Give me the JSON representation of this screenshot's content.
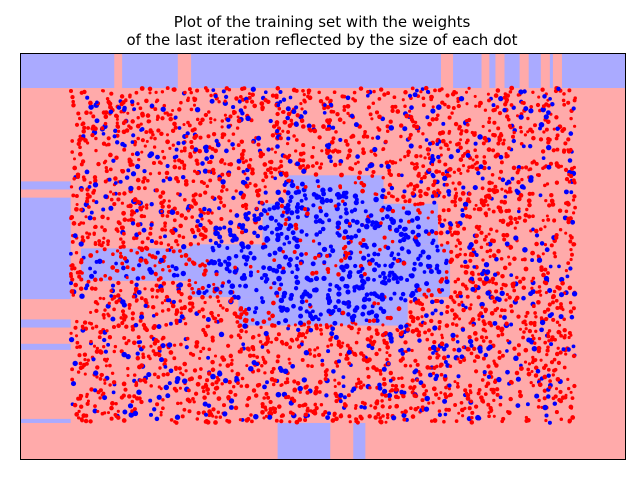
{
  "chart_data": {
    "type": "scatter",
    "title": "Plot of the training set with the weights",
    "subtitle": "of the last iteration reflected by the size of each dot",
    "xlabel": "",
    "ylabel": "",
    "xlim": [
      0,
      1
    ],
    "ylim": [
      0,
      1
    ],
    "axis_ticks": "none",
    "grid": false,
    "legend": "none",
    "background_regions": {
      "class_a_color": "#ffaaaa",
      "class_b_color": "#aaaaff",
      "class_b_rects": [
        {
          "x0": 0.0,
          "x1": 0.155,
          "y0": 0.915,
          "y1": 1.0
        },
        {
          "x0": 0.168,
          "x1": 0.26,
          "y0": 0.915,
          "y1": 1.0
        },
        {
          "x0": 0.282,
          "x1": 0.695,
          "y0": 0.915,
          "y1": 1.0
        },
        {
          "x0": 0.715,
          "x1": 0.762,
          "y0": 0.915,
          "y1": 1.0
        },
        {
          "x0": 0.775,
          "x1": 0.785,
          "y0": 0.915,
          "y1": 1.0
        },
        {
          "x0": 0.8,
          "x1": 0.825,
          "y0": 0.915,
          "y1": 1.0
        },
        {
          "x0": 0.84,
          "x1": 0.86,
          "y0": 0.915,
          "y1": 1.0
        },
        {
          "x0": 0.875,
          "x1": 0.88,
          "y0": 0.915,
          "y1": 1.0
        },
        {
          "x0": 0.895,
          "x1": 1.0,
          "y0": 0.915,
          "y1": 1.0
        },
        {
          "x0": 0.0,
          "x1": 0.083,
          "y0": 0.665,
          "y1": 0.685
        },
        {
          "x0": 0.0,
          "x1": 0.083,
          "y0": 0.395,
          "y1": 0.645
        },
        {
          "x0": 0.0,
          "x1": 0.083,
          "y0": 0.325,
          "y1": 0.345
        },
        {
          "x0": 0.0,
          "x1": 0.083,
          "y0": 0.27,
          "y1": 0.285
        },
        {
          "x0": 0.0,
          "x1": 0.083,
          "y0": 0.09,
          "y1": 0.1
        },
        {
          "x0": 0.425,
          "x1": 0.512,
          "y0": 0.0,
          "y1": 0.09
        },
        {
          "x0": 0.55,
          "x1": 0.57,
          "y0": 0.0,
          "y1": 0.09
        },
        {
          "x0": 0.1,
          "x1": 0.3,
          "y0": 0.44,
          "y1": 0.52
        },
        {
          "x0": 0.28,
          "x1": 0.71,
          "y0": 0.4,
          "y1": 0.53
        },
        {
          "x0": 0.4,
          "x1": 0.69,
          "y0": 0.53,
          "y1": 0.63
        },
        {
          "x0": 0.44,
          "x1": 0.6,
          "y0": 0.63,
          "y1": 0.7
        },
        {
          "x0": 0.36,
          "x1": 0.64,
          "y0": 0.33,
          "y1": 0.4
        }
      ]
    },
    "series": [
      {
        "color": "#ff0000",
        "approx_points": 2600
      },
      {
        "color": "#0000ff",
        "approx_points": 1400
      }
    ],
    "sampling": {
      "x_range": [
        0.083,
        0.917
      ],
      "y_range": [
        0.09,
        0.915
      ],
      "blue_ring_inner": 0.07,
      "blue_ring_outer": 0.21,
      "blue_ring_center": [
        0.5,
        0.5
      ]
    }
  }
}
